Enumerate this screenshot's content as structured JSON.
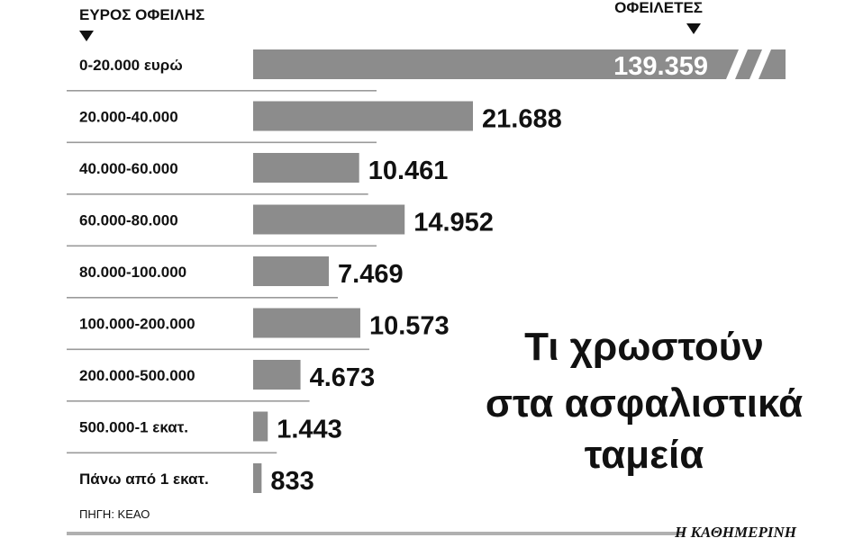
{
  "chart_data": {
    "type": "bar",
    "orientation": "horizontal",
    "category_header": "ΕΥΡΟΣ ΟΦΕΙΛΗΣ",
    "value_header": "ΟΦΕΙΛΕΤΕΣ",
    "title_lines": [
      "Τι χρωστούν",
      "στα ασφαλιστικά",
      "ταμεία"
    ],
    "categories": [
      "0-20.000 ευρώ",
      "20.000-40.000",
      "40.000-60.000",
      "60.000-80.000",
      "80.000-100.000",
      "100.000-200.000",
      "200.000-500.000",
      "500.000-1 εκατ.",
      "Πάνω από 1 εκατ."
    ],
    "values": [
      139359,
      21688,
      10461,
      14952,
      7469,
      10573,
      4673,
      1443,
      833
    ],
    "value_labels": [
      "139.359",
      "21.688",
      "10.461",
      "14.952",
      "7.469",
      "10.573",
      "4.673",
      "1.443",
      "833"
    ],
    "truncated_bar_index": 0,
    "bar_color": "#8c8c8c",
    "source": "ΠΗΓΗ: ΚΕΑΟ",
    "brand": "Η ΚΑΘΗΜΕΡΙΝΗ"
  }
}
